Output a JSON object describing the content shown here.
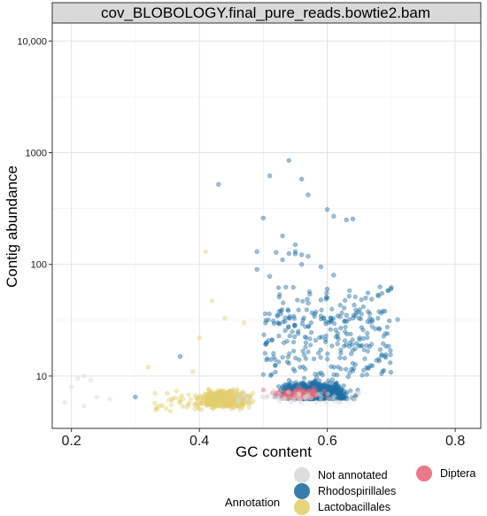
{
  "chart_data": {
    "type": "scatter",
    "title": "cov_BLOBOLOGY.final_pure_reads.bowtie2.bam",
    "xlabel": "GC content",
    "ylabel": "Contig abundance",
    "xlim": [
      0.17,
      0.84
    ],
    "ylim": [
      3.4,
      14500
    ],
    "yscale": "log",
    "x_ticks": [
      0.2,
      0.4,
      0.6,
      0.8
    ],
    "x_tick_labels": [
      "0.2",
      "0.4",
      "0.6",
      "0.8"
    ],
    "y_ticks": [
      10,
      100,
      1000,
      10000
    ],
    "y_tick_labels": [
      "10",
      "100",
      "1000",
      "10,000"
    ],
    "grid": true,
    "legend": {
      "title": "Annotation",
      "placement": "bottom",
      "entries": [
        {
          "name": "Not annotated",
          "color": "#d9d9d9"
        },
        {
          "name": "Rhodospirillales",
          "color": "#1f6fa6"
        },
        {
          "name": "Lactobacillales",
          "color": "#e3cf6e"
        },
        {
          "name": "Diptera",
          "color": "#e86a7a"
        }
      ]
    },
    "series": [
      {
        "name": "Not annotated",
        "color": "#d9d9d9",
        "x": [
          0.21,
          0.22,
          0.23,
          0.2,
          0.24,
          0.19,
          0.22,
          0.26
        ],
        "y": [
          9.5,
          10,
          9.2,
          8,
          6.5,
          5.8,
          5.4,
          6.2
        ]
      },
      {
        "name": "Rhodospirillales",
        "color": "#1f6fa6",
        "x": [
          0.54,
          0.43,
          0.56,
          0.57,
          0.51,
          0.53,
          0.5,
          0.6,
          0.63,
          0.61,
          0.55,
          0.64,
          0.55,
          0.54,
          0.49,
          0.52,
          0.56,
          0.57,
          0.53,
          0.55,
          0.59,
          0.56,
          0.49,
          0.61,
          0.51,
          0.66,
          0.68,
          0.7,
          0.67,
          0.63,
          0.64,
          0.65,
          0.62,
          0.6,
          0.59,
          0.69,
          0.71,
          0.57,
          0.58,
          0.37,
          0.3
        ],
        "y": [
          850,
          520,
          580,
          420,
          620,
          180,
          260,
          310,
          250,
          270,
          150,
          255,
          130,
          125,
          130,
          128,
          122,
          118,
          110,
          124,
          95,
          100,
          90,
          80,
          78,
          50,
          52,
          62,
          32,
          35,
          33,
          33,
          34,
          60,
          48,
          38,
          32,
          45,
          36,
          15,
          6.5
        ]
      },
      {
        "name": "Lactobacillales",
        "color": "#e3cf6e",
        "x": [
          0.41,
          0.42,
          0.44,
          0.47,
          0.4,
          0.32,
          0.35,
          0.39
        ],
        "y": [
          130,
          47,
          33,
          30,
          22,
          12,
          7,
          11
        ]
      },
      {
        "name": "Diptera",
        "color": "#e86a7a",
        "x": [
          0.52,
          0.55,
          0.57,
          0.6,
          0.5,
          0.54,
          0.58
        ],
        "y": [
          7,
          6.8,
          7.3,
          6.6,
          7.5,
          6.4,
          7.2
        ]
      }
    ]
  }
}
